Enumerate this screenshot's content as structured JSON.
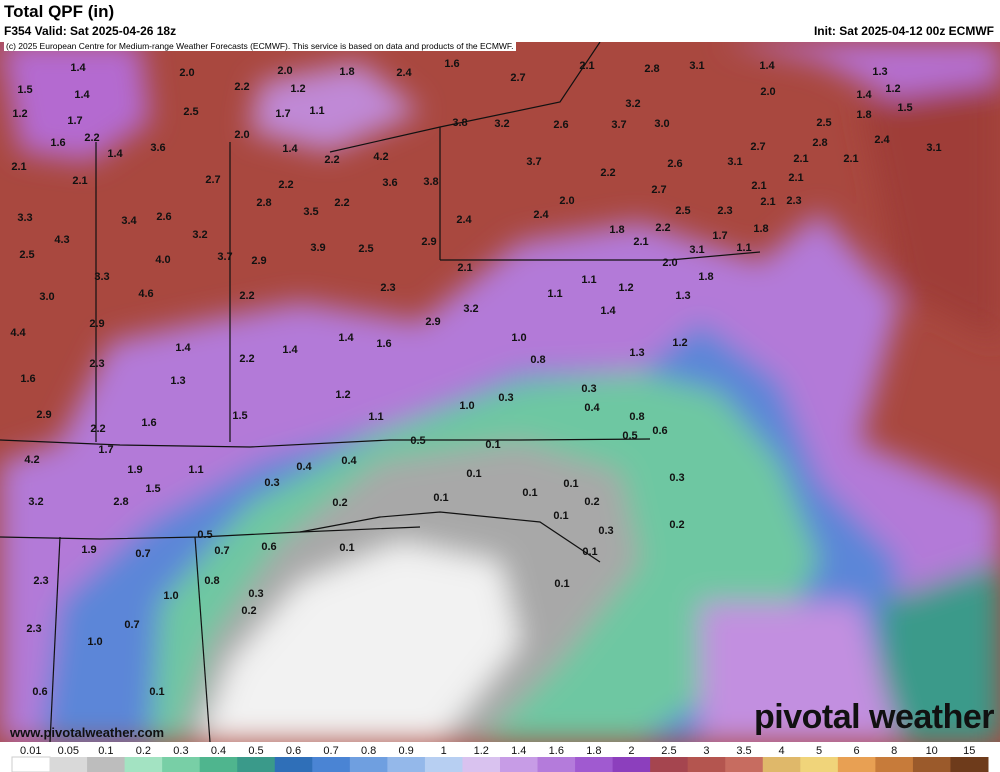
{
  "header": {
    "title": "Total QPF (in)",
    "valid": "F354 Valid: Sat 2025-04-26 18z",
    "init": "Init: Sat 2025-04-12 00z ECMWF",
    "credit": "(c) 2025 European Centre for Medium-range Weather Forecasts (ECMWF). This service is based on data and products of the ECMWF."
  },
  "footer": {
    "site": "www.pivotalweather.com",
    "logo": "pivotal weather"
  },
  "colorbar": {
    "labels": [
      "0.01",
      "0.05",
      "0.1",
      "0.2",
      "0.3",
      "0.4",
      "0.5",
      "0.6",
      "0.7",
      "0.8",
      "0.9",
      "1",
      "1.2",
      "1.4",
      "1.6",
      "1.8",
      "2",
      "2.5",
      "3",
      "3.5",
      "4",
      "5",
      "6",
      "8",
      "10",
      "15"
    ],
    "colors": [
      "#ffffff",
      "#d9d9d9",
      "#bdbdbd",
      "#a3e3c2",
      "#78cfa6",
      "#4fb58e",
      "#3a9a8a",
      "#2f6fb8",
      "#4a84d4",
      "#6f9fe0",
      "#94b8ea",
      "#b7cff2",
      "#d9c2ef",
      "#c79ce6",
      "#b47bdb",
      "#a05ad0",
      "#8c3fbd",
      "#a5454f",
      "#b4554f",
      "#c76c60",
      "#dfb86a",
      "#f0d47a",
      "#e8a053",
      "#c77b3a",
      "#9b5a2b",
      "#6e3b1b"
    ]
  },
  "map": {
    "labels": [
      "1.4",
      "2.0",
      "2.0",
      "1.8",
      "2.4",
      "1.6",
      "2.7",
      "2.1",
      "2.8",
      "3.1",
      "1.4",
      "1.3",
      "1.5",
      "1.4",
      "2.2",
      "1.2",
      "2.0",
      "1.4",
      "1.2",
      "3.2",
      "1.2",
      "1.7",
      "2.5",
      "1.7",
      "1.1",
      "1.8",
      "1.5",
      "3.8",
      "3.2",
      "2.6",
      "3.7",
      "3.0",
      "2.5",
      "1.6",
      "2.2",
      "2.0",
      "2.8",
      "2.4",
      "3.1",
      "1.4",
      "3.6",
      "1.4",
      "2.2",
      "4.2",
      "2.7",
      "2.1",
      "3.7",
      "2.6",
      "3.1",
      "2.1",
      "2.1",
      "2.1",
      "2.7",
      "2.2",
      "3.6",
      "3.8",
      "2.2",
      "2.7",
      "2.1",
      "2.1",
      "2.8",
      "2.6",
      "3.4",
      "3.5",
      "2.2",
      "2.0",
      "2.5",
      "2.3",
      "2.1",
      "2.3",
      "3.3",
      "2.4",
      "2.4",
      "2.2",
      "1.8",
      "1.7",
      "1.8",
      "4.3",
      "3.2",
      "2.9",
      "2.1",
      "1.1",
      "2.5",
      "4.0",
      "3.7",
      "2.9",
      "3.9",
      "2.5",
      "3.1",
      "3.3",
      "2.1",
      "2.0",
      "1.8",
      "3.0",
      "4.6",
      "2.2",
      "2.3",
      "1.1",
      "1.1",
      "1.2",
      "1.3",
      "2.9",
      "3.2",
      "1.4",
      "4.4",
      "2.9",
      "1.0",
      "1.4",
      "1.6",
      "1.2",
      "1.4",
      "2.2",
      "1.4",
      "1.3",
      "2.3",
      "0.8",
      "1.6",
      "1.3",
      "1.2",
      "0.3",
      "2.9",
      "1.5",
      "1.1",
      "1.0",
      "0.3",
      "0.4",
      "0.8",
      "2.2",
      "1.6",
      "0.5",
      "0.6",
      "0.5",
      "0.1",
      "1.7",
      "4.2",
      "1.9",
      "1.1",
      "0.4",
      "0.4",
      "0.1",
      "0.3",
      "1.5",
      "0.1",
      "0.1",
      "0.3",
      "3.2",
      "2.8",
      "0.2",
      "0.1",
      "0.2",
      "0.1",
      "0.2",
      "0.5",
      "0.3",
      "1.9",
      "0.7",
      "0.7",
      "0.6",
      "0.1",
      "0.1",
      "2.3",
      "0.8",
      "0.1",
      "0.3",
      "1.0",
      "0.2",
      "2.3",
      "0.7",
      "1.0",
      "0.6",
      "0.1"
    ]
  }
}
